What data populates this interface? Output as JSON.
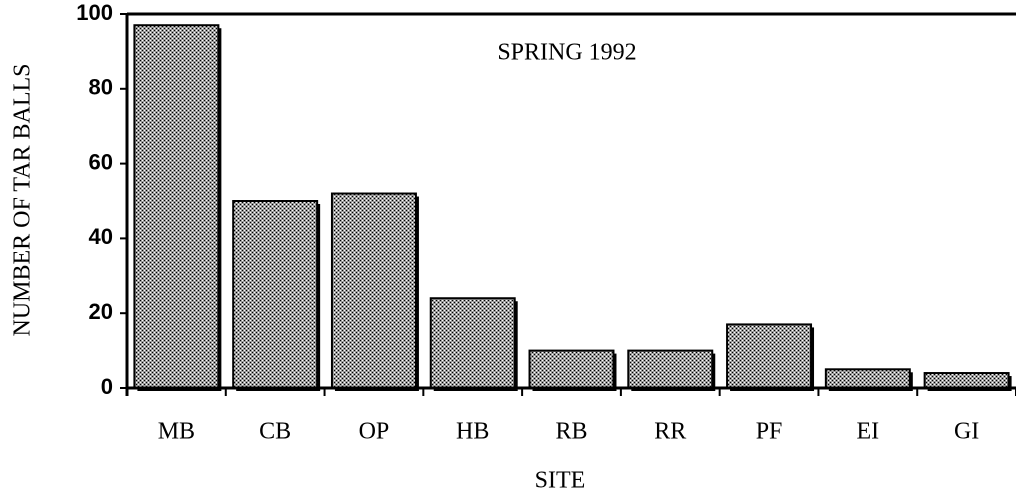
{
  "chart_data": {
    "type": "bar",
    "title": "SPRING 1992",
    "x_label": "SITE",
    "y_label": "NUMBER OF TAR BALLS",
    "categories": [
      "MB",
      "CB",
      "OP",
      "HB",
      "RB",
      "RR",
      "PF",
      "EI",
      "GI"
    ],
    "values": [
      97,
      50,
      52,
      24,
      10,
      10,
      17,
      5,
      4
    ],
    "color": "#9a9a9a",
    "ylim": [
      0,
      100
    ],
    "yticks": [
      0,
      20,
      40,
      60,
      80,
      100
    ],
    "grid": false
  }
}
